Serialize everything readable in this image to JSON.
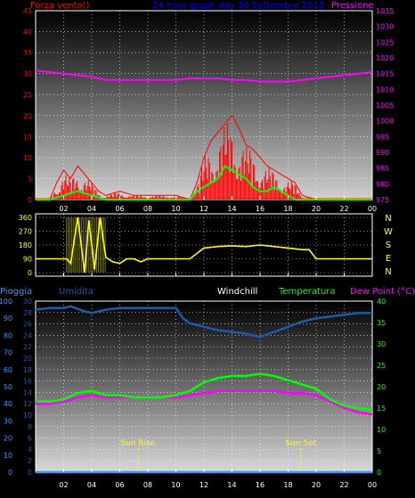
{
  "chart_data": [
    {
      "type": "line",
      "title": "24 hour graph day  30 Settembre 2013",
      "left_label": "Forza vento()",
      "right_label": "Pressione",
      "x_ticks": [
        "02",
        "04",
        "06",
        "08",
        "10",
        "12",
        "14",
        "16",
        "18",
        "20",
        "22",
        "00"
      ],
      "y_left_ticks": [
        "0",
        "5",
        "10",
        "15",
        "20",
        "25",
        "30",
        "35",
        "40",
        "45"
      ],
      "y_right_ticks": [
        "975",
        "980",
        "985",
        "990",
        "995",
        "1000",
        "1005",
        "1010",
        "1015",
        "1020",
        "1025",
        "1030",
        "1035"
      ],
      "ylim_left": [
        0,
        45
      ],
      "ylim_right": [
        975,
        1035
      ],
      "xlim": [
        0,
        24
      ],
      "series": [
        {
          "name": "Pressione",
          "color": "#ff00ff",
          "axis": "right",
          "x": [
            0,
            1,
            2,
            3,
            4,
            5,
            6,
            7,
            8,
            9,
            10,
            11,
            12,
            13,
            14,
            15,
            16,
            17,
            18,
            19,
            20,
            21,
            22,
            23,
            24
          ],
          "values": [
            1016,
            1015.5,
            1015,
            1014.5,
            1014,
            1013,
            1013,
            1013,
            1013,
            1013,
            1013,
            1013.5,
            1013.5,
            1013.5,
            1013,
            1013,
            1012.5,
            1012.5,
            1012.5,
            1013,
            1013.5,
            1014,
            1014.5,
            1015,
            1015.5
          ]
        },
        {
          "name": "",
          "color": "#00ff00",
          "axis": "left",
          "x": [
            0,
            1,
            2,
            3,
            4,
            5,
            6,
            7,
            8,
            9,
            10,
            11,
            11.5,
            12,
            12.5,
            13,
            13.5,
            14,
            14.5,
            15,
            15.5,
            16,
            16.5,
            17,
            17.5,
            18,
            18.5,
            19,
            20,
            21,
            22,
            23,
            24
          ],
          "values": [
            0,
            0,
            1,
            2,
            1,
            0,
            0,
            0,
            0,
            0,
            0,
            0,
            2,
            3,
            4,
            5,
            8,
            7,
            6,
            5,
            3,
            2,
            2,
            3,
            2,
            1,
            0,
            0,
            0,
            0,
            0,
            0,
            0
          ]
        },
        {
          "name": "",
          "color": "#ff0000",
          "axis": "left",
          "x": [
            0,
            1,
            1.5,
            2,
            2.5,
            3,
            3.5,
            4,
            4.5,
            5,
            6,
            7,
            8,
            9,
            10,
            11,
            11.5,
            12,
            12.5,
            13,
            13.5,
            14,
            14.5,
            15,
            15.5,
            16,
            16.5,
            17,
            17.5,
            18,
            18.5,
            19,
            20,
            21,
            22,
            23,
            24
          ],
          "values": [
            0,
            0,
            4,
            7,
            5,
            8,
            6,
            4,
            2,
            1,
            2,
            1,
            1,
            1,
            1,
            0,
            4,
            10,
            14,
            16,
            18,
            20,
            17,
            13,
            12,
            10,
            8,
            7,
            6,
            5,
            4,
            1,
            0,
            0,
            0,
            0,
            0
          ]
        }
      ]
    },
    {
      "type": "line",
      "title": "",
      "y_ticks": [
        "0",
        "90",
        "180",
        "270",
        "360"
      ],
      "right_letters": [
        "N",
        "W",
        "S",
        "E",
        "N"
      ],
      "ylim": [
        0,
        360
      ],
      "xlim": [
        0,
        24
      ],
      "series": [
        {
          "name": "",
          "color": "#ffff00",
          "x": [
            0,
            1.5,
            2.2,
            2.5,
            3,
            3.5,
            3.8,
            4.2,
            4.6,
            5,
            5.5,
            6,
            6.5,
            7,
            7.5,
            8,
            9,
            10,
            10.5,
            11,
            12,
            13,
            14,
            15,
            16,
            17,
            18,
            19,
            19.5,
            20,
            21,
            22,
            23,
            24
          ],
          "values": [
            90,
            90,
            90,
            60,
            360,
            0,
            340,
            20,
            360,
            100,
            70,
            60,
            90,
            90,
            70,
            90,
            90,
            90,
            90,
            90,
            160,
            170,
            175,
            170,
            180,
            170,
            160,
            150,
            150,
            90,
            90,
            90,
            90,
            90
          ]
        }
      ]
    },
    {
      "type": "line",
      "title": "",
      "labels": {
        "pioggia": "Pioggia",
        "umidita": "Umidita",
        "windchill": "Windchill",
        "temperatura": "Temperatura",
        "dewpoint": "Dew Point (°C)"
      },
      "annotations": [
        "Sun Rise",
        "Sun Set"
      ],
      "annotation_x": [
        7.3,
        18.9
      ],
      "y_left_ticks": [
        "0",
        "2",
        "4",
        "6",
        "8",
        "10",
        "12",
        "14",
        "16",
        "18",
        "20",
        "22",
        "24",
        "26",
        "28",
        "30"
      ],
      "y_left2_ticks": [
        "0",
        "10",
        "20",
        "30",
        "40",
        "50",
        "60",
        "70",
        "80",
        "90",
        "100"
      ],
      "y_right_ticks": [
        "0",
        "5",
        "10",
        "15",
        "20",
        "25",
        "30",
        "35",
        "40"
      ],
      "ylim_left": [
        0,
        30
      ],
      "ylim_left2": [
        0,
        100
      ],
      "ylim_right": [
        0,
        40
      ],
      "xlim": [
        0,
        24
      ],
      "series": [
        {
          "name": "Umidita",
          "color": "#1e5aa8",
          "axis": "left2",
          "x": [
            0,
            1,
            2,
            2.5,
            3.5,
            4,
            5,
            6,
            7,
            8,
            9,
            10,
            10.5,
            11,
            12,
            13,
            14,
            15,
            16,
            17,
            18,
            19,
            20,
            21,
            22,
            23,
            24
          ],
          "values": [
            95,
            96,
            96,
            97,
            94,
            93,
            95,
            96,
            96,
            96,
            96,
            96,
            90,
            87,
            85,
            83,
            82,
            81,
            79,
            82,
            85,
            88,
            90,
            91,
            92,
            93,
            93
          ]
        },
        {
          "name": "Temperatura",
          "color": "#00ff00",
          "axis": "right",
          "x": [
            0,
            1,
            2,
            3,
            4,
            5,
            6,
            7,
            8,
            9,
            10,
            11,
            12,
            13,
            14,
            15,
            16,
            17,
            18,
            19,
            20,
            21,
            22,
            23,
            24
          ],
          "values": [
            16.5,
            16.5,
            17,
            18.5,
            19,
            18,
            18,
            17.5,
            17.5,
            17.5,
            18,
            19,
            21,
            22,
            22.5,
            22.5,
            23,
            22.5,
            21.5,
            20.5,
            19.5,
            17,
            15.5,
            15,
            14.5
          ]
        },
        {
          "name": "Dew Point (°C)",
          "color": "#ff00ff",
          "axis": "right",
          "x": [
            0,
            1,
            2,
            3,
            4,
            5,
            6,
            7,
            8,
            9,
            10,
            11,
            12,
            13,
            14,
            15,
            16,
            17,
            18,
            19,
            20,
            21,
            22,
            23,
            24
          ],
          "values": [
            16,
            16,
            16.5,
            17.5,
            18,
            17.5,
            17.5,
            17.5,
            17.5,
            17.5,
            17.5,
            18,
            18.5,
            19,
            19,
            19,
            19,
            19,
            18.5,
            18.5,
            18,
            16.5,
            15,
            14,
            13.5
          ]
        },
        {
          "name": "Pioggia",
          "color": "#3399ff",
          "axis": "left",
          "x": [
            0,
            24
          ],
          "values": [
            0,
            0
          ]
        }
      ]
    }
  ]
}
